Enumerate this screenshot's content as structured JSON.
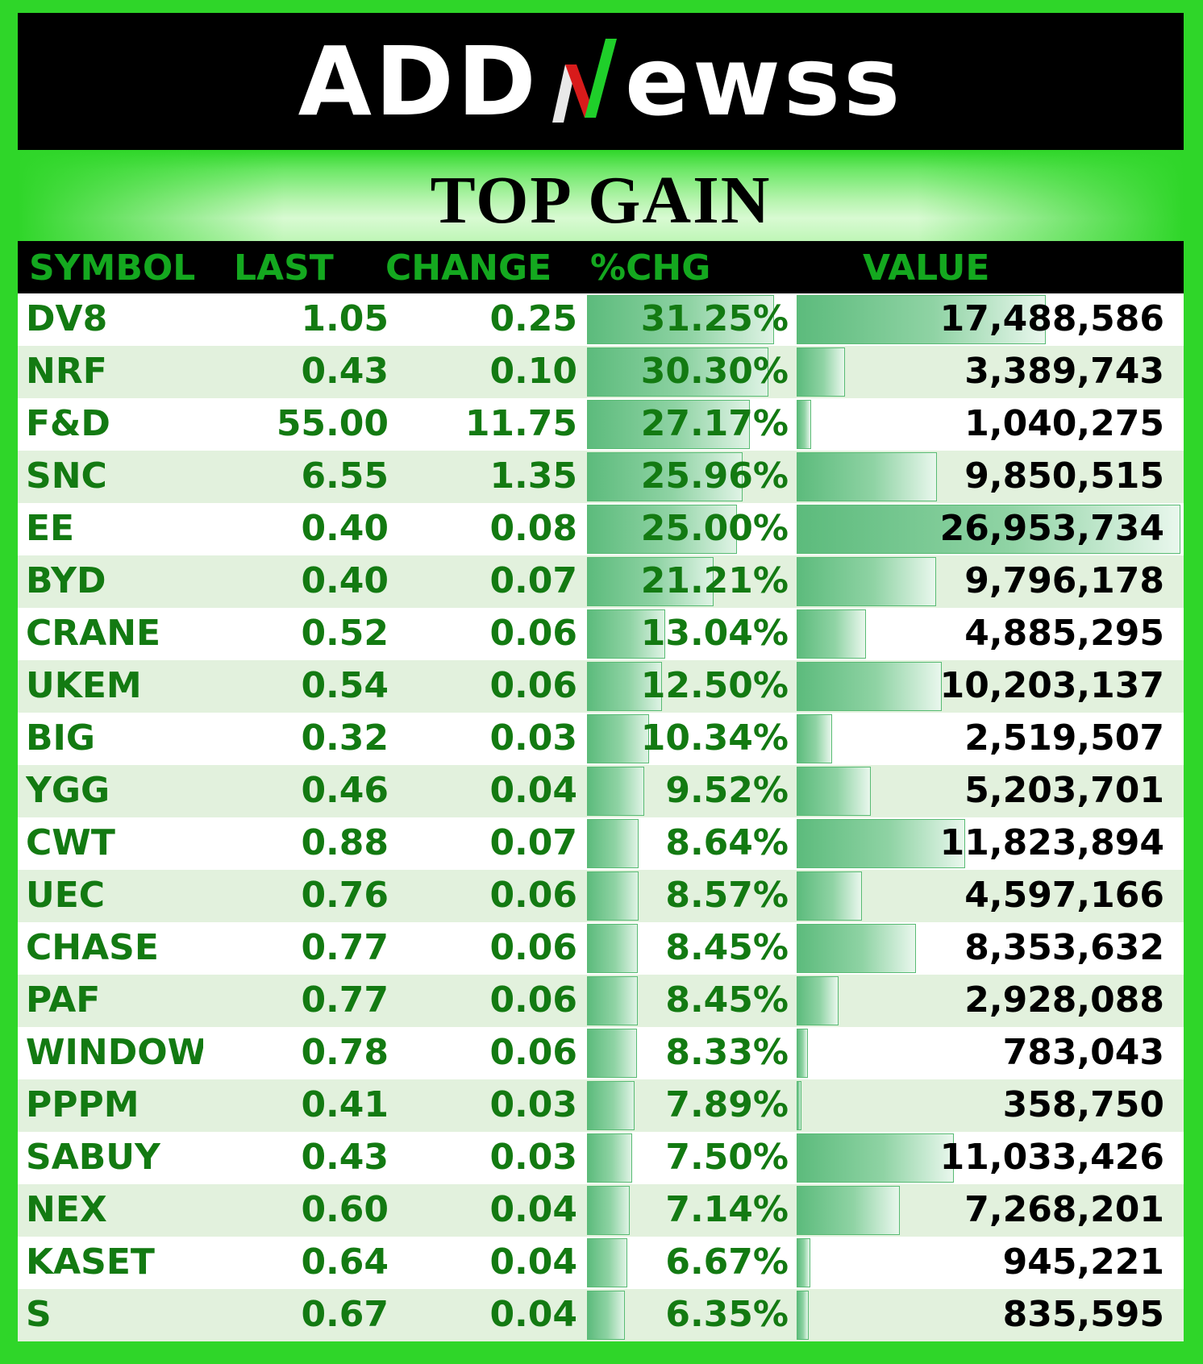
{
  "brand": {
    "name_left": "ADD",
    "name_right": "ewss",
    "logo_icon": "green-red-n-stock-arrow-icon"
  },
  "title": "TOP GAIN",
  "columns": {
    "symbol": "SYMBOL",
    "last": "LAST",
    "change": "CHANGE",
    "pct": "%CHG",
    "value": "VALUE"
  },
  "colors": {
    "background_green": "#2fd629",
    "header_text_green": "#14a81f",
    "row_text_green": "#137a12",
    "bar_green": "#5cbb7c",
    "alt_row": "#e2f1dd"
  },
  "scales": {
    "pct_max": 31.25,
    "value_max": 26953734
  },
  "rows": [
    {
      "symbol": "DV8",
      "last": "1.05",
      "change": "0.25",
      "pct": "31.25%",
      "pct_num": 31.25,
      "value": "17,488,586",
      "value_num": 17488586
    },
    {
      "symbol": "NRF",
      "last": "0.43",
      "change": "0.10",
      "pct": "30.30%",
      "pct_num": 30.3,
      "value": "3,389,743",
      "value_num": 3389743
    },
    {
      "symbol": "F&D",
      "last": "55.00",
      "change": "11.75",
      "pct": "27.17%",
      "pct_num": 27.17,
      "value": "1,040,275",
      "value_num": 1040275
    },
    {
      "symbol": "SNC",
      "last": "6.55",
      "change": "1.35",
      "pct": "25.96%",
      "pct_num": 25.96,
      "value": "9,850,515",
      "value_num": 9850515
    },
    {
      "symbol": "EE",
      "last": "0.40",
      "change": "0.08",
      "pct": "25.00%",
      "pct_num": 25.0,
      "value": "26,953,734",
      "value_num": 26953734
    },
    {
      "symbol": "BYD",
      "last": "0.40",
      "change": "0.07",
      "pct": "21.21%",
      "pct_num": 21.21,
      "value": "9,796,178",
      "value_num": 9796178
    },
    {
      "symbol": "CRANE",
      "last": "0.52",
      "change": "0.06",
      "pct": "13.04%",
      "pct_num": 13.04,
      "value": "4,885,295",
      "value_num": 4885295
    },
    {
      "symbol": "UKEM",
      "last": "0.54",
      "change": "0.06",
      "pct": "12.50%",
      "pct_num": 12.5,
      "value": "10,203,137",
      "value_num": 10203137
    },
    {
      "symbol": "BIG",
      "last": "0.32",
      "change": "0.03",
      "pct": "10.34%",
      "pct_num": 10.34,
      "value": "2,519,507",
      "value_num": 2519507
    },
    {
      "symbol": "YGG",
      "last": "0.46",
      "change": "0.04",
      "pct": "9.52%",
      "pct_num": 9.52,
      "value": "5,203,701",
      "value_num": 5203701
    },
    {
      "symbol": "CWT",
      "last": "0.88",
      "change": "0.07",
      "pct": "8.64%",
      "pct_num": 8.64,
      "value": "11,823,894",
      "value_num": 11823894
    },
    {
      "symbol": "UEC",
      "last": "0.76",
      "change": "0.06",
      "pct": "8.57%",
      "pct_num": 8.57,
      "value": "4,597,166",
      "value_num": 4597166
    },
    {
      "symbol": "CHASE",
      "last": "0.77",
      "change": "0.06",
      "pct": "8.45%",
      "pct_num": 8.45,
      "value": "8,353,632",
      "value_num": 8353632
    },
    {
      "symbol": "PAF",
      "last": "0.77",
      "change": "0.06",
      "pct": "8.45%",
      "pct_num": 8.45,
      "value": "2,928,088",
      "value_num": 2928088
    },
    {
      "symbol": "WINDOW",
      "last": "0.78",
      "change": "0.06",
      "pct": "8.33%",
      "pct_num": 8.33,
      "value": "783,043",
      "value_num": 783043
    },
    {
      "symbol": "PPPM",
      "last": "0.41",
      "change": "0.03",
      "pct": "7.89%",
      "pct_num": 7.89,
      "value": "358,750",
      "value_num": 358750
    },
    {
      "symbol": "SABUY",
      "last": "0.43",
      "change": "0.03",
      "pct": "7.50%",
      "pct_num": 7.5,
      "value": "11,033,426",
      "value_num": 11033426
    },
    {
      "symbol": "NEX",
      "last": "0.60",
      "change": "0.04",
      "pct": "7.14%",
      "pct_num": 7.14,
      "value": "7,268,201",
      "value_num": 7268201
    },
    {
      "symbol": "KASET",
      "last": "0.64",
      "change": "0.04",
      "pct": "6.67%",
      "pct_num": 6.67,
      "value": "945,221",
      "value_num": 945221
    },
    {
      "symbol": "S",
      "last": "0.67",
      "change": "0.04",
      "pct": "6.35%",
      "pct_num": 6.35,
      "value": "835,595",
      "value_num": 835595
    }
  ]
}
